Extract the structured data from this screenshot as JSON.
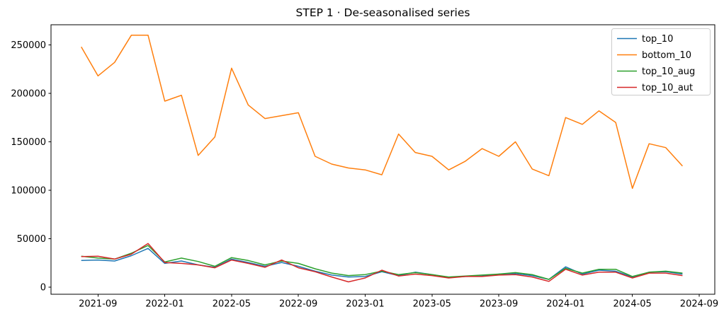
{
  "figure": {
    "background": "#ffffff"
  },
  "chart_data": {
    "type": "line",
    "title": "STEP 1 · De-seasonalised series",
    "x": [
      "2021-08",
      "2021-09",
      "2021-10",
      "2021-11",
      "2021-12",
      "2022-01",
      "2022-02",
      "2022-03",
      "2022-04",
      "2022-05",
      "2022-06",
      "2022-07",
      "2022-08",
      "2022-09",
      "2022-10",
      "2022-11",
      "2022-12",
      "2023-01",
      "2023-02",
      "2023-03",
      "2023-04",
      "2023-05",
      "2023-06",
      "2023-07",
      "2023-08",
      "2023-09",
      "2023-10",
      "2023-11",
      "2023-12",
      "2024-01",
      "2024-02",
      "2024-03",
      "2024-04",
      "2024-05",
      "2024-06",
      "2024-07",
      "2024-08"
    ],
    "x_tick_labels": [
      "2021-09",
      "2022-01",
      "2022-05",
      "2022-09",
      "2023-01",
      "2023-05",
      "2023-09",
      "2024-01",
      "2024-05",
      "2024-09"
    ],
    "y_ticks": [
      0,
      50000,
      100000,
      150000,
      200000,
      250000
    ],
    "y_tick_labels": [
      "0",
      "50000",
      "100000",
      "150000",
      "200000",
      "250000"
    ],
    "ylim": [
      -7300,
      270800
    ],
    "grid": false,
    "legend": {
      "position": "upper right",
      "entries": [
        "top_10",
        "bottom_10",
        "top_10_aug",
        "top_10_aut"
      ]
    },
    "series": [
      {
        "name": "top_10",
        "color": "#1f77b4",
        "values": [
          27500,
          28000,
          27000,
          32500,
          40000,
          24500,
          27000,
          23000,
          20500,
          29000,
          25500,
          21500,
          25500,
          21500,
          16500,
          12500,
          10500,
          11000,
          16000,
          12000,
          15500,
          13000,
          10000,
          11000,
          11500,
          13500,
          14000,
          12000,
          8000,
          21000,
          13500,
          17500,
          16500,
          10500,
          15500,
          16000,
          13500
        ]
      },
      {
        "name": "bottom_10",
        "color": "#ff7f0e",
        "values": [
          248000,
          218000,
          232000,
          260000,
          260000,
          192000,
          198000,
          136000,
          155000,
          226000,
          188000,
          174000,
          177000,
          180000,
          135000,
          127000,
          123000,
          121000,
          116000,
          158000,
          139000,
          135000,
          121000,
          130000,
          143000,
          135000,
          150000,
          122000,
          115000,
          175000,
          168000,
          182000,
          170000,
          102000,
          148000,
          144000,
          125000
        ]
      },
      {
        "name": "top_10_aug",
        "color": "#2ca02c",
        "values": [
          32000,
          30000,
          29000,
          35000,
          43000,
          26000,
          30000,
          26500,
          21500,
          30500,
          27500,
          23000,
          27000,
          24500,
          19000,
          14500,
          12000,
          13000,
          16500,
          13000,
          15000,
          13000,
          10500,
          11500,
          12500,
          13500,
          15000,
          13000,
          8000,
          19500,
          14500,
          18500,
          18500,
          11000,
          15500,
          16500,
          14500
        ]
      },
      {
        "name": "top_10_aut",
        "color": "#d62728",
        "values": [
          31500,
          32000,
          29000,
          34000,
          45000,
          25500,
          24500,
          23000,
          20000,
          28000,
          24500,
          20500,
          28000,
          20000,
          16000,
          10500,
          5500,
          9500,
          17500,
          11500,
          13500,
          12000,
          9500,
          11000,
          11000,
          12500,
          13000,
          10500,
          6000,
          18500,
          12500,
          15500,
          15500,
          9500,
          14500,
          14500,
          12000
        ]
      }
    ],
    "axis_color": "#000000",
    "legend_frame_color": "#cccccc"
  }
}
